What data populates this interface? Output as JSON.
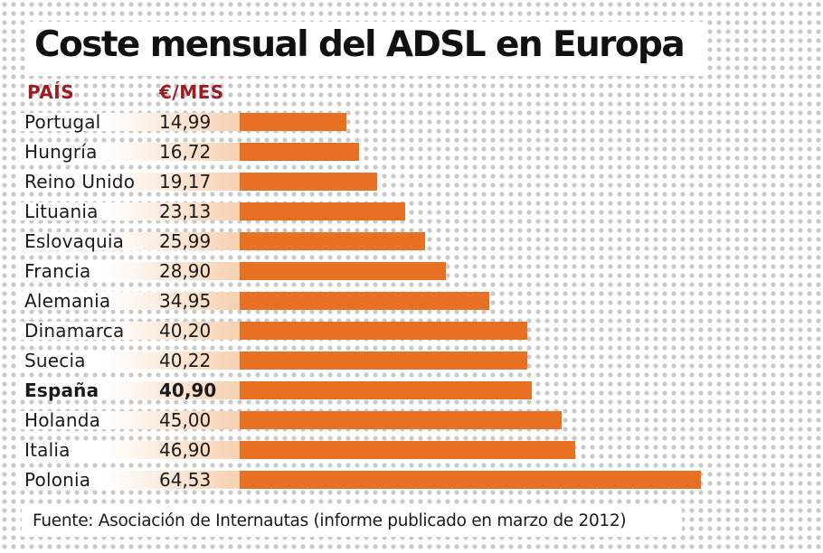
{
  "chart_data": {
    "type": "bar",
    "orientation": "horizontal",
    "title": "Coste mensual del ADSL en Europa",
    "column_headers": {
      "country": "PAÍS",
      "value": "€/MES"
    },
    "categories": [
      "Portugal",
      "Hungría",
      "Reino Unido",
      "Lituania",
      "Eslovaquia",
      "Francia",
      "Alemania",
      "Dinamarca",
      "Suecia",
      "España",
      "Holanda",
      "Italia",
      "Polonia"
    ],
    "value_labels": [
      "14,99",
      "16,72",
      "19,17",
      "23,13",
      "25,99",
      "28,90",
      "34,95",
      "40,20",
      "40,22",
      "40,90",
      "45,00",
      "46,90",
      "64,53"
    ],
    "values": [
      14.99,
      16.72,
      19.17,
      23.13,
      25.99,
      28.9,
      34.95,
      40.2,
      40.22,
      40.9,
      45.0,
      46.9,
      64.53
    ],
    "highlight": "España",
    "xlim": [
      0,
      64.53
    ],
    "bar_color": "#e87023",
    "header_color": "#9e1b22",
    "source": "Fuente: Asociación de Internautas (informe publicado en marzo de 2012)"
  }
}
